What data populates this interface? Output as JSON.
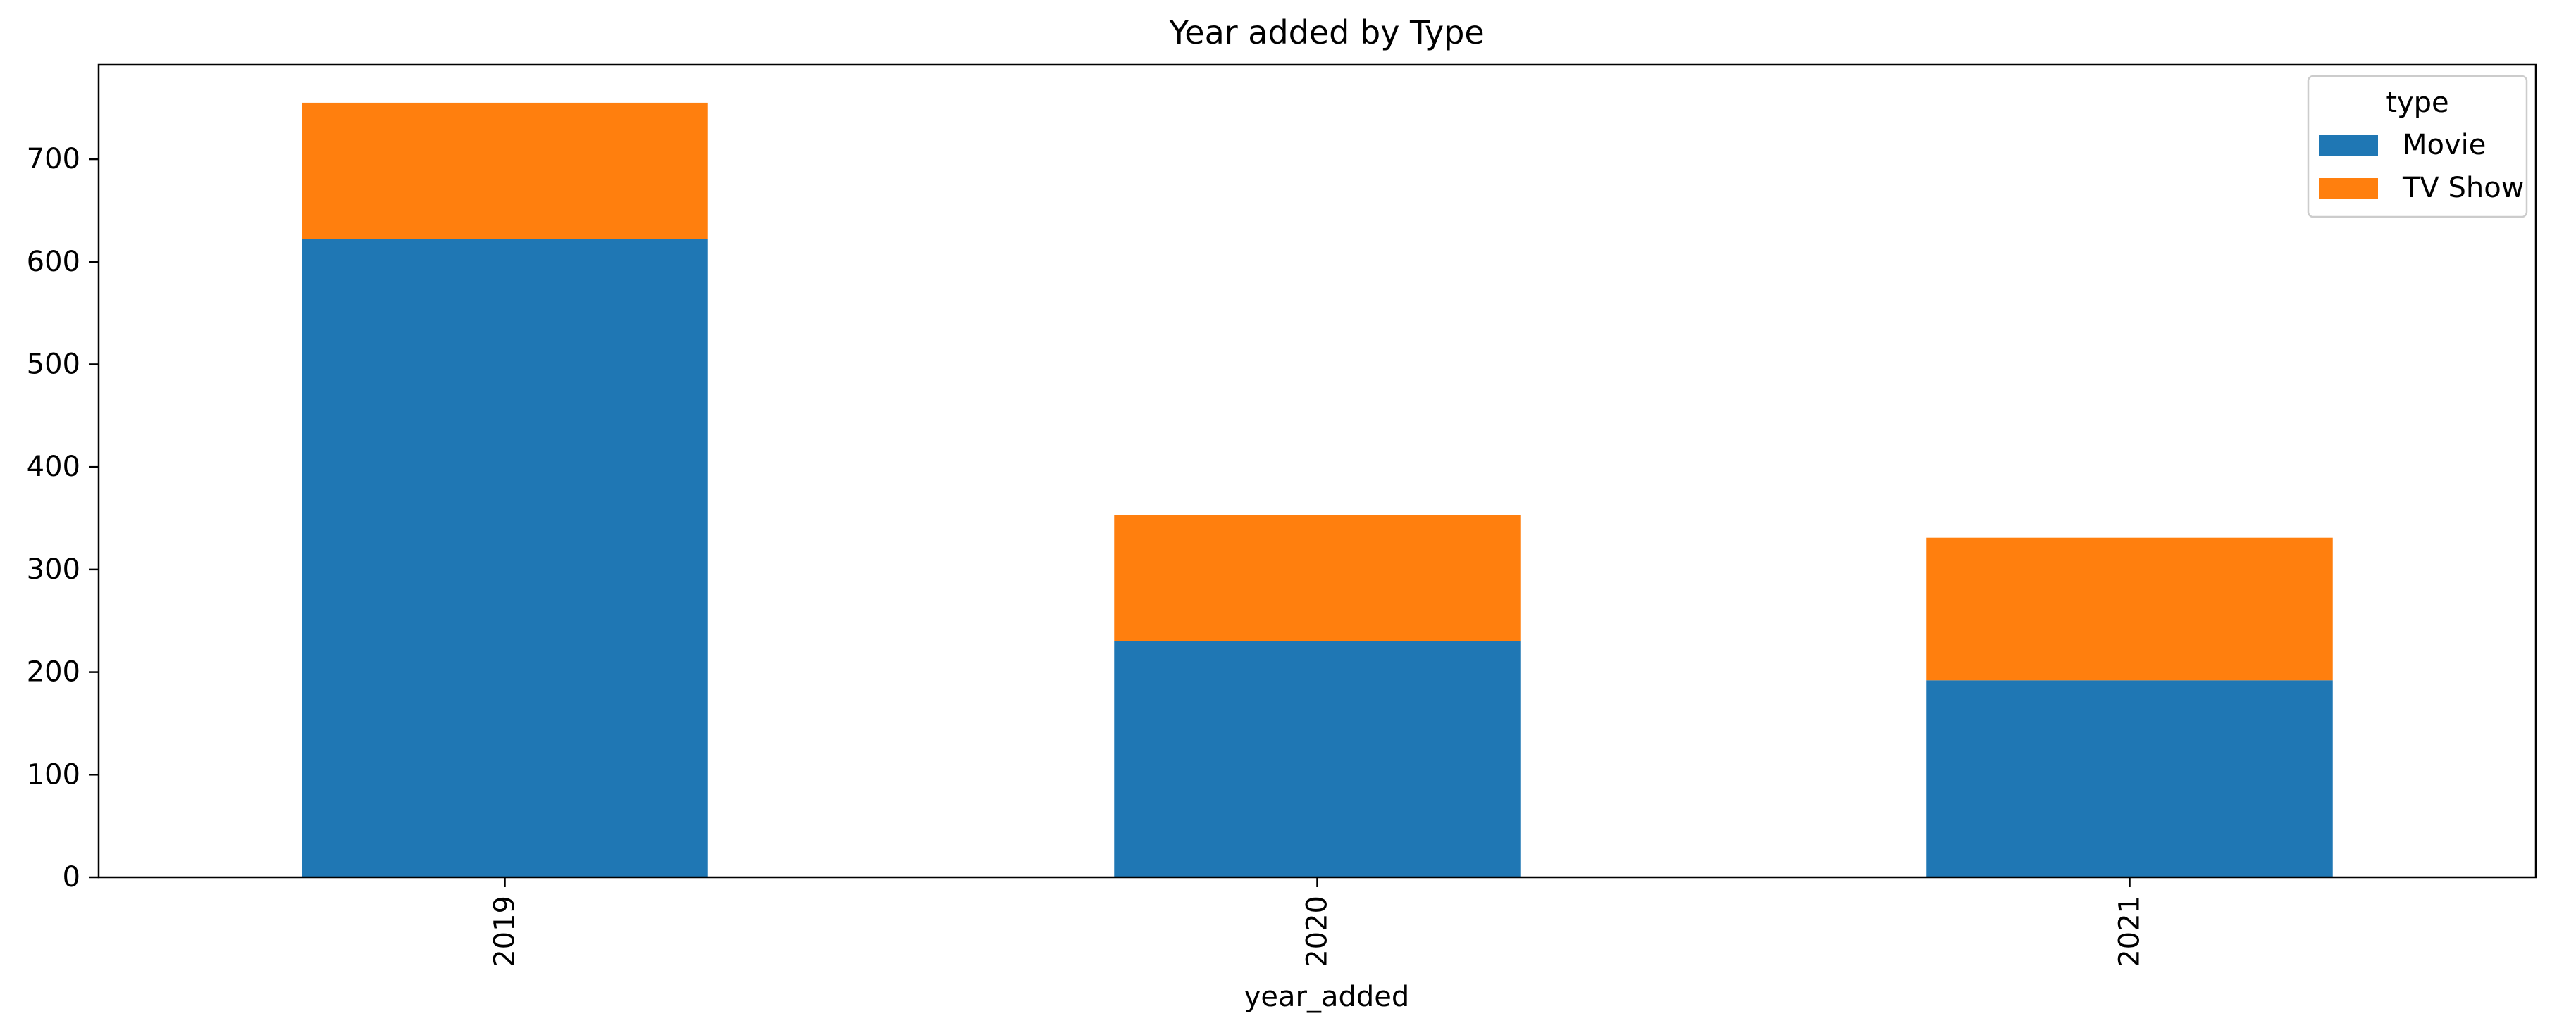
{
  "chart_data": {
    "type": "bar",
    "stacked": true,
    "title": "Year added by Type",
    "xlabel": "year_added",
    "ylabel": "",
    "categories": [
      "2019",
      "2020",
      "2021"
    ],
    "series": [
      {
        "name": "Movie",
        "values": [
          622,
          230,
          192
        ],
        "color": "#1f77b4"
      },
      {
        "name": "TV Show",
        "values": [
          133,
          123,
          139
        ],
        "color": "#ff7f0e"
      }
    ],
    "ylim": [
      0,
      792
    ],
    "yticks": [
      0,
      100,
      200,
      300,
      400,
      500,
      600,
      700
    ],
    "grid": false,
    "legend": {
      "title": "type",
      "position": "top-right"
    }
  }
}
